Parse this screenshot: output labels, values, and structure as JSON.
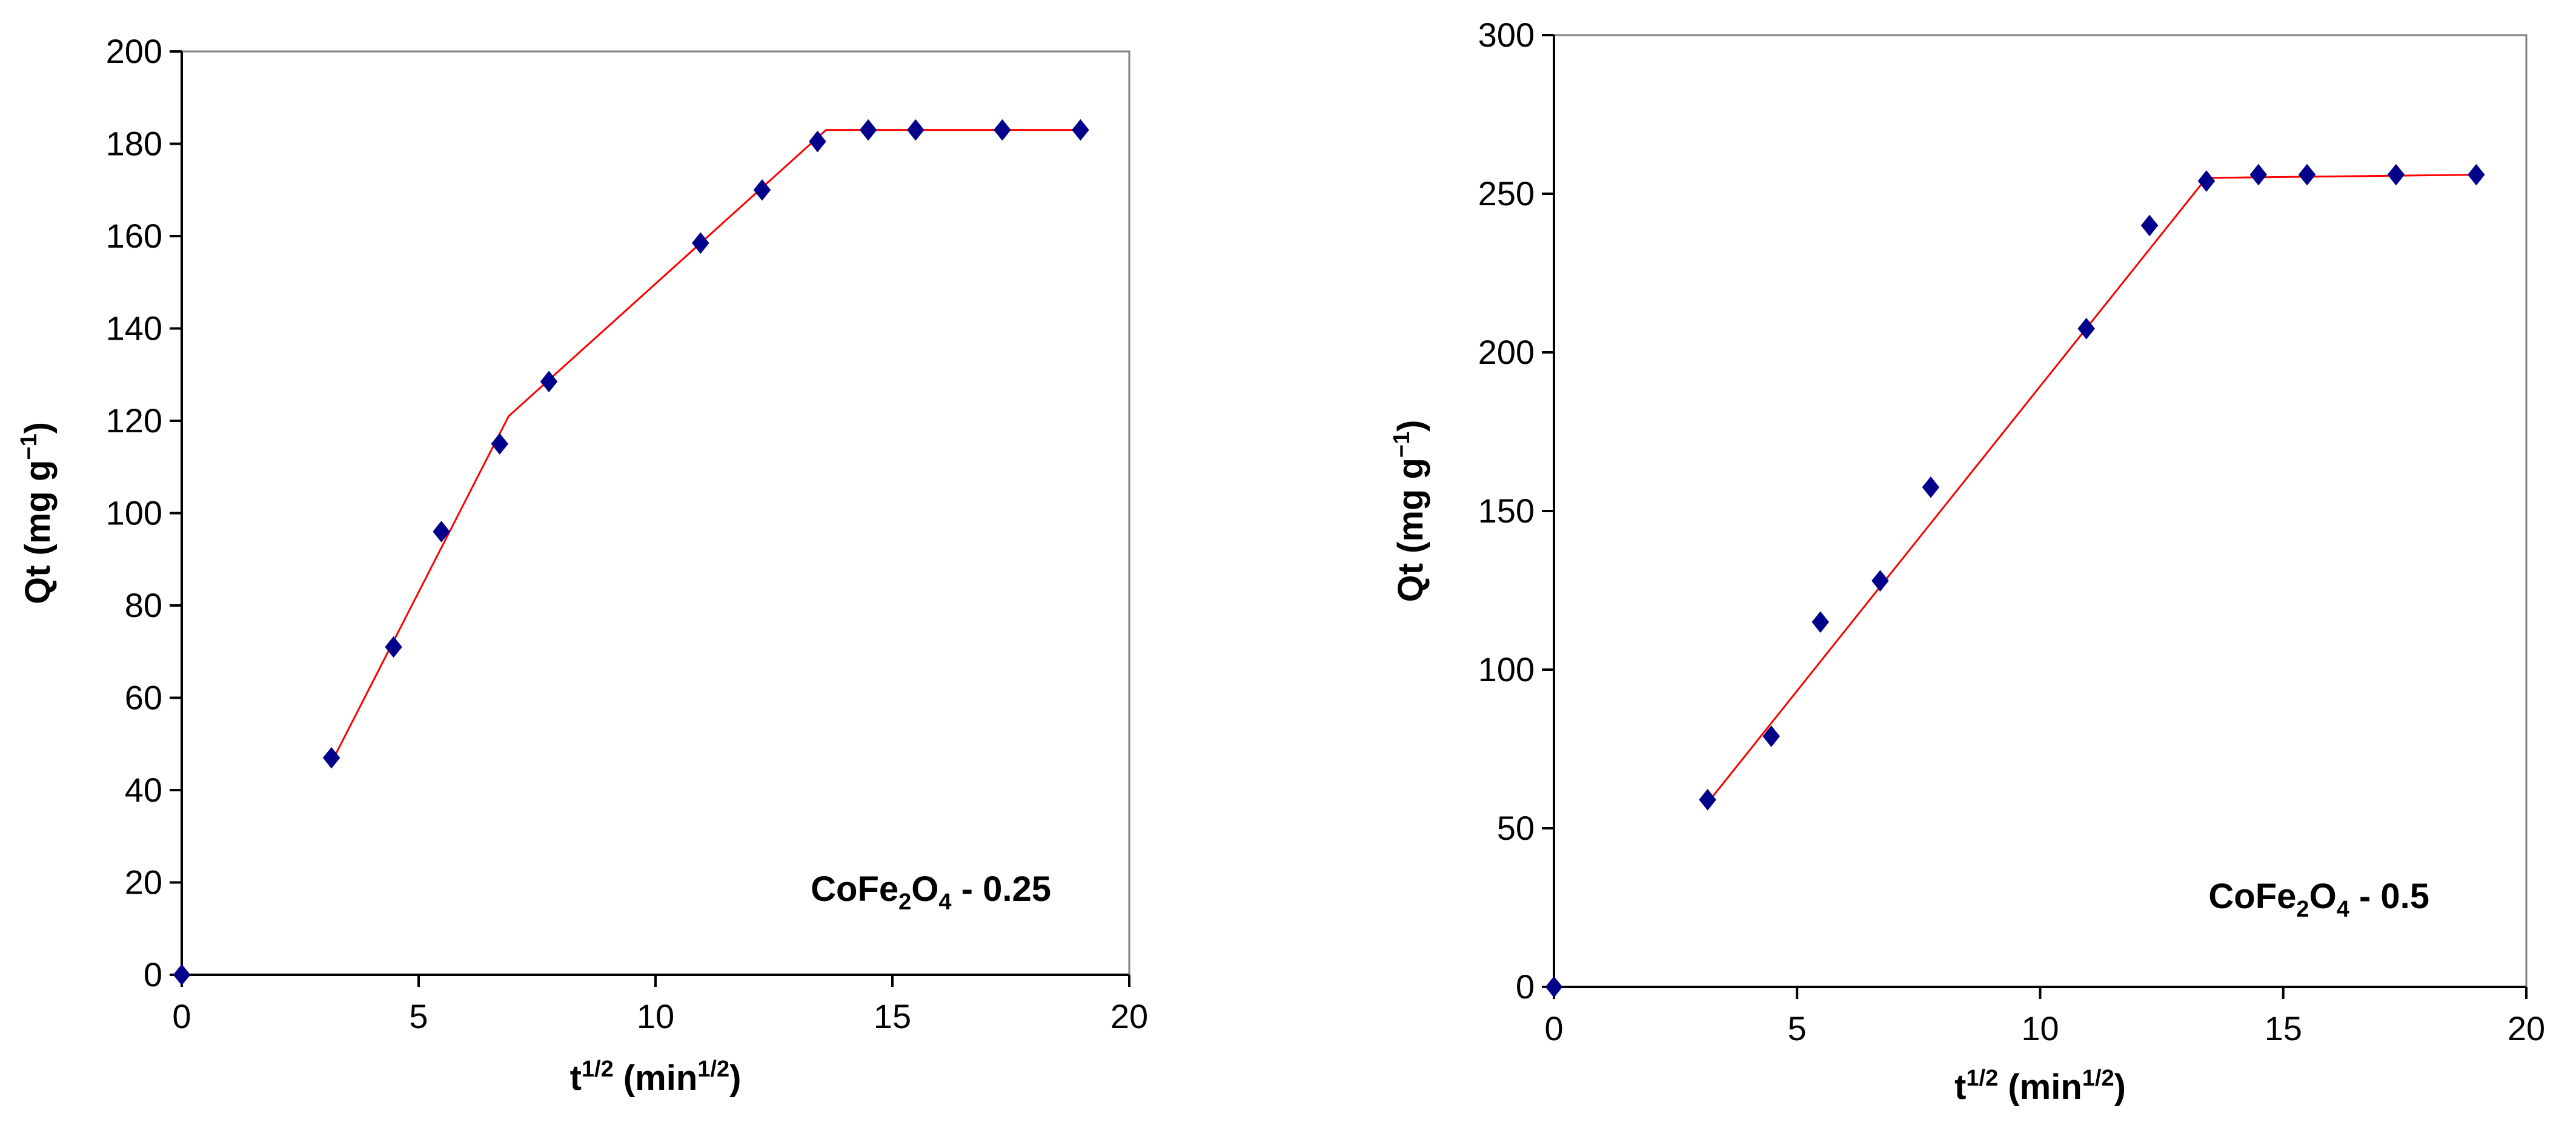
{
  "chart_data": [
    {
      "type": "scatter",
      "title": "",
      "xlabel": {
        "base": "t",
        "sup": "1/2",
        "unit_open": " (min",
        "unit_sup": "1/2",
        "unit_close": ")"
      },
      "ylabel": {
        "text": "Qt (mg g",
        "sup": "−1",
        "close": ")"
      },
      "xlim": [
        0,
        20
      ],
      "ylim": [
        0,
        200
      ],
      "xticks": [
        0,
        5,
        10,
        15,
        20
      ],
      "yticks": [
        0,
        20,
        40,
        60,
        80,
        100,
        120,
        140,
        160,
        180,
        200
      ],
      "annotation": {
        "a": "CoFe",
        "sub1": "2",
        "b": "O",
        "sub2": "4",
        "c": " - 0.25"
      },
      "series": [
        {
          "name": "data",
          "style": "marker",
          "color": "#00008B",
          "points": [
            [
              0,
              0
            ],
            [
              3.16,
              47
            ],
            [
              4.47,
              71
            ],
            [
              5.48,
              96
            ],
            [
              6.71,
              115
            ],
            [
              7.75,
              128.5
            ],
            [
              10.95,
              158.5
            ],
            [
              12.25,
              170
            ],
            [
              13.42,
              180.5
            ],
            [
              14.49,
              183
            ],
            [
              15.49,
              183
            ],
            [
              17.32,
              183
            ],
            [
              18.97,
              183
            ]
          ]
        },
        {
          "name": "fit",
          "style": "line",
          "color": "#FF0000",
          "points": [
            [
              3.16,
              46
            ],
            [
              6.9,
              121
            ],
            [
              13.6,
              183
            ],
            [
              18.97,
              183
            ]
          ]
        }
      ]
    },
    {
      "type": "scatter",
      "title": "",
      "xlabel": {
        "base": "t",
        "sup": "1/2",
        "unit_open": " (min",
        "unit_sup": "1/2",
        "unit_close": ")"
      },
      "ylabel": {
        "text": "Qt (mg g",
        "sup": "−1",
        "close": ")"
      },
      "xlim": [
        0,
        20
      ],
      "ylim": [
        0,
        300
      ],
      "xticks": [
        0,
        5,
        10,
        15,
        20
      ],
      "yticks": [
        0,
        50,
        100,
        150,
        200,
        250,
        300
      ],
      "annotation": {
        "a": "CoFe",
        "sub1": "2",
        "b": "O",
        "sub2": "4",
        "c": " - 0.5"
      },
      "series": [
        {
          "name": "data",
          "style": "marker",
          "color": "#00008B",
          "points": [
            [
              0,
              0
            ],
            [
              3.16,
              59
            ],
            [
              4.47,
              79
            ],
            [
              5.48,
              115
            ],
            [
              6.71,
              128
            ],
            [
              7.75,
              157.5
            ],
            [
              10.95,
              207.5
            ],
            [
              12.25,
              240
            ],
            [
              13.42,
              254
            ],
            [
              14.49,
              256
            ],
            [
              15.49,
              256
            ],
            [
              17.32,
              256
            ],
            [
              18.97,
              256
            ]
          ]
        },
        {
          "name": "fit",
          "style": "line",
          "color": "#FF0000",
          "points": [
            [
              3.16,
              58
            ],
            [
              13.42,
              255
            ],
            [
              18.97,
              256
            ]
          ]
        }
      ]
    }
  ]
}
